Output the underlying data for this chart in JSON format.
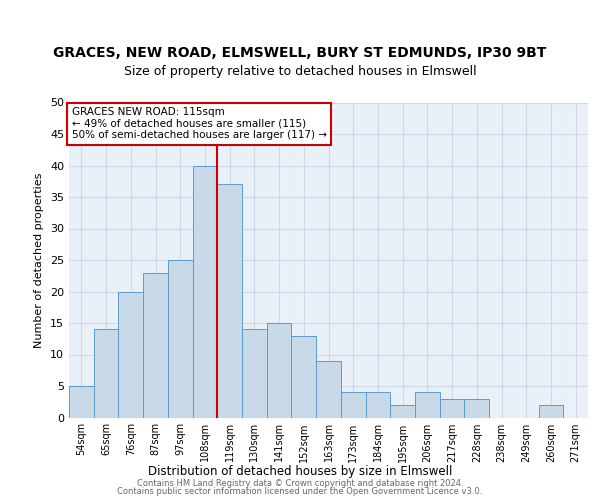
{
  "title": "GRACES, NEW ROAD, ELMSWELL, BURY ST EDMUNDS, IP30 9BT",
  "subtitle": "Size of property relative to detached houses in Elmswell",
  "xlabel": "Distribution of detached houses by size in Elmswell",
  "ylabel": "Number of detached properties",
  "categories": [
    "54sqm",
    "65sqm",
    "76sqm",
    "87sqm",
    "97sqm",
    "108sqm",
    "119sqm",
    "130sqm",
    "141sqm",
    "152sqm",
    "163sqm",
    "173sqm",
    "184sqm",
    "195sqm",
    "206sqm",
    "217sqm",
    "228sqm",
    "238sqm",
    "249sqm",
    "260sqm",
    "271sqm"
  ],
  "values": [
    5,
    14,
    20,
    23,
    25,
    40,
    37,
    14,
    15,
    13,
    9,
    4,
    4,
    2,
    4,
    3,
    3,
    0,
    0,
    2,
    0
  ],
  "bar_color": "#c8d9e8",
  "bar_edge_color": "#5b9bd5",
  "vline_x": 5.5,
  "vline_color": "#cc0000",
  "annotation_title": "GRACES NEW ROAD: 115sqm",
  "annotation_line1": "← 49% of detached houses are smaller (115)",
  "annotation_line2": "50% of semi-detached houses are larger (117) →",
  "annotation_box_color": "#cc0000",
  "ylim": [
    0,
    50
  ],
  "yticks": [
    0,
    5,
    10,
    15,
    20,
    25,
    30,
    35,
    40,
    45,
    50
  ],
  "footnote1": "Contains HM Land Registry data © Crown copyright and database right 2024.",
  "footnote2": "Contains public sector information licensed under the Open Government Licence v3.0.",
  "title_fontsize": 10,
  "subtitle_fontsize": 9,
  "background_color": "#ffffff",
  "grid_color": "#d0d8e8",
  "ax_facecolor": "#eaf0f8"
}
